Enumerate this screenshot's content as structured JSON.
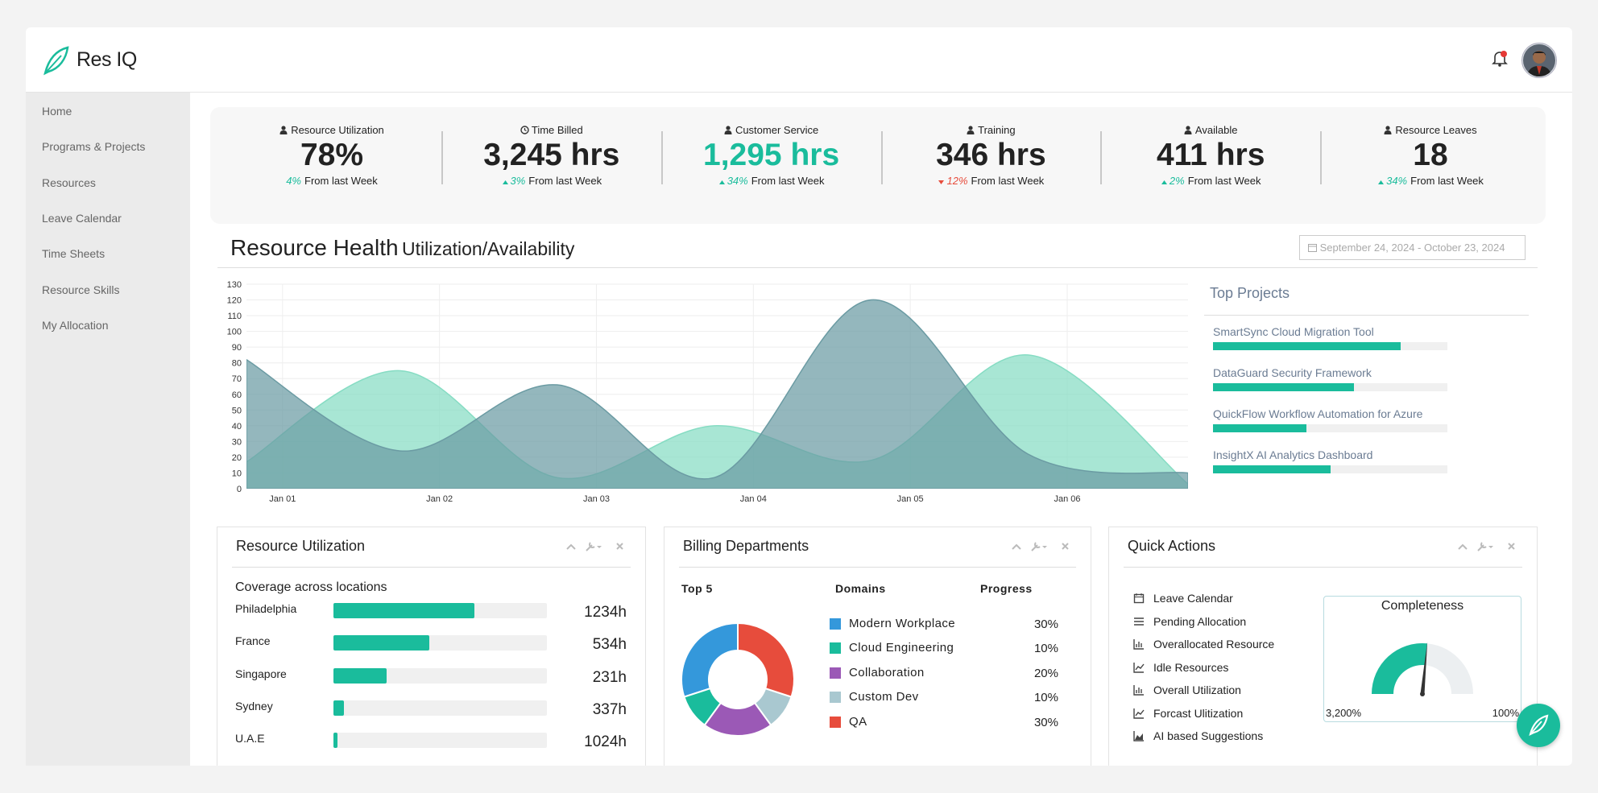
{
  "header": {
    "brand": "Res IQ"
  },
  "nav": [
    "Home",
    "Programs & Projects",
    "Resources",
    "Leave Calendar",
    "Time Sheets",
    "Resource Skills",
    "My Allocation"
  ],
  "kpis": [
    {
      "label": "Resource Utilization",
      "value": "78%",
      "change": "4%",
      "note": "From last Week"
    },
    {
      "label": "Time Billed",
      "value": "3,245 hrs",
      "change": "3%",
      "trend": "up",
      "note": "From last Week"
    },
    {
      "label": "Customer Service",
      "value": "1,295 hrs",
      "change": "34%",
      "trend": "up",
      "note": "From last Week",
      "color": "#1abc9c"
    },
    {
      "label": "Training",
      "value": "346 hrs",
      "change": "12%",
      "trend": "down",
      "note": "From last Week"
    },
    {
      "label": "Available",
      "value": "411 hrs",
      "change": "2%",
      "trend": "up",
      "note": "From last Week"
    },
    {
      "label": "Resource Leaves",
      "value": "18",
      "change": "34%",
      "trend": "up",
      "note": "From last Week"
    }
  ],
  "resource_health": {
    "title": "Resource Health",
    "subtitle": "Utilization/Availability",
    "date_range": "September 24, 2024 - October 23, 2024"
  },
  "chart_data": {
    "type": "area",
    "x": [
      0.77,
      1.75,
      2.75,
      3.75,
      4.75,
      5.75,
      6.77
    ],
    "xlim": [
      0.77,
      6.77
    ],
    "xticks": [
      {
        "value": 1,
        "label": "Jan 01"
      },
      {
        "value": 2,
        "label": "Jan 02"
      },
      {
        "value": 3,
        "label": "Jan 03"
      },
      {
        "value": 4,
        "label": "Jan 04"
      },
      {
        "value": 5,
        "label": "Jan 05"
      },
      {
        "value": 6,
        "label": "Jan 06"
      }
    ],
    "ylim": [
      0,
      130
    ],
    "yticks": [
      0,
      10,
      20,
      30,
      40,
      50,
      60,
      70,
      80,
      90,
      100,
      110,
      120,
      130
    ],
    "grid": true,
    "series": [
      {
        "color": "#86dcc3",
        "values": [
          17,
          75,
          7,
          40,
          18,
          85,
          3
        ]
      },
      {
        "color": "#6b9ba3",
        "values": [
          82,
          24,
          66,
          7,
          120,
          22,
          10
        ]
      }
    ]
  },
  "top_projects": {
    "title": "Top Projects",
    "items": [
      {
        "name": "SmartSync Cloud Migration Tool",
        "value": 80
      },
      {
        "name": "DataGuard Security Framework",
        "value": 60
      },
      {
        "name": "QuickFlow Workflow Automation for Azure",
        "value": 40
      },
      {
        "name": "InsightX AI Analytics Dashboard",
        "value": 50
      }
    ]
  },
  "utilization": {
    "title": "Resource Utilization",
    "subtitle": "Coverage across locations",
    "rows": [
      {
        "location": "Philadelphia",
        "percent": 66,
        "hours": "1234h"
      },
      {
        "location": "France",
        "percent": 45,
        "hours": "534h"
      },
      {
        "location": "Singapore",
        "percent": 25,
        "hours": "231h"
      },
      {
        "location": "Sydney",
        "percent": 5,
        "hours": "337h"
      },
      {
        "location": "U.A.E",
        "percent": 2,
        "hours": "1024h"
      }
    ]
  },
  "billing": {
    "title": "Billing Departments",
    "columns": [
      "Top 5",
      "Domains",
      "Progress"
    ],
    "domains": [
      "Modern Workplace",
      "Cloud Engineering",
      "Collaboration",
      "Custom Dev",
      "QA"
    ],
    "values": [
      30,
      10,
      20,
      10,
      30
    ],
    "value_labels": [
      "30%",
      "10%",
      "20%",
      "10%",
      "30%"
    ],
    "colors": [
      "#3498db",
      "#1abc9c",
      "#9b59b6",
      "#a9c8d0",
      "#e74c3c"
    ]
  },
  "quick_actions": {
    "title": "Quick Actions",
    "items": [
      "Leave Calendar",
      "Pending Allocation",
      "Overallocated Resource",
      "Idle Resources",
      "Overall Utilization",
      "Forcast Ulitization",
      "AI based Suggestions"
    ],
    "gauge": {
      "title": "Completeness",
      "min_label": "3,200%",
      "max_label": "100%",
      "fraction": 0.53,
      "color": "#1abc9c"
    }
  }
}
